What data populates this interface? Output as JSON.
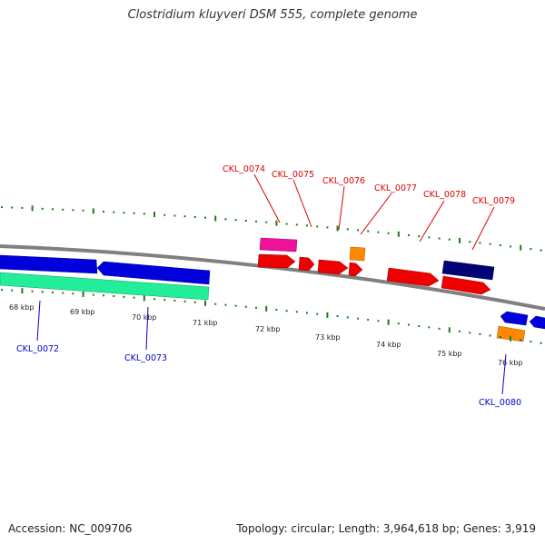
{
  "title": "Clostridium kluyveri DSM 555, complete genome",
  "footer": {
    "accession": "Accession: NC_009706",
    "summary": "Topology: circular; Length: 3,964,618 bp; Genes: 3,919"
  },
  "colors": {
    "backbone": "#808080",
    "tick": "#1a7a1a",
    "label_red": "#dd0000",
    "label_blue": "#0000cc",
    "gene_red": "#ee0000",
    "gene_blue": "#0000dd",
    "gene_teal": "#22ee99",
    "gene_magenta": "#ee1199",
    "gene_orange": "#ff8800",
    "gene_navy": "#000077"
  },
  "scale_labels": [
    "68 kbp",
    "69 kbp",
    "70 kbp",
    "71 kbp",
    "72 kbp",
    "73 kbp",
    "74 kbp",
    "75 kbp",
    "76 kbp"
  ],
  "gene_labels": {
    "top": [
      "CKL_0074",
      "CKL_0075",
      "CKL_0076",
      "CKL_0077",
      "CKL_0078",
      "CKL_0079"
    ],
    "bottom": [
      "CKL_0072",
      "CKL_0073",
      "CKL_0080"
    ]
  }
}
